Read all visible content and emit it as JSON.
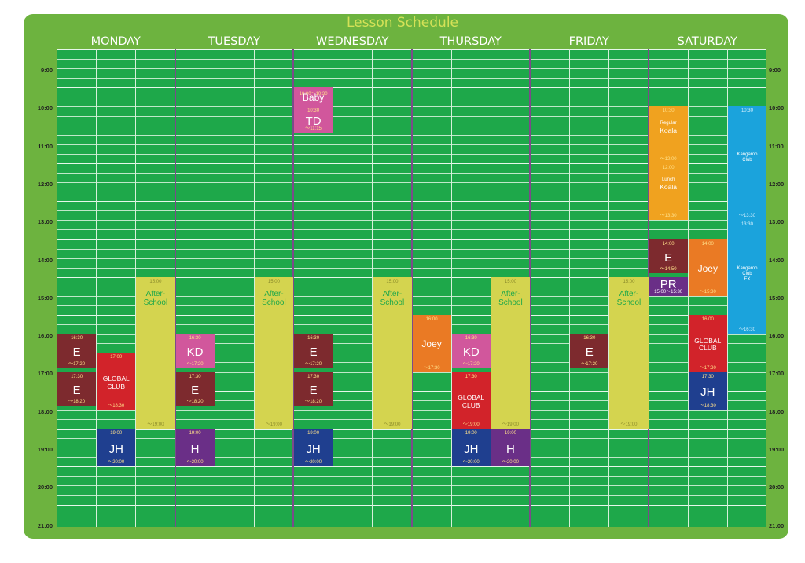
{
  "title": "Lesson Schedule",
  "days": [
    "MONDAY",
    "TUESDAY",
    "WEDNESDAY",
    "THURSDAY",
    "FRIDAY",
    "SATURDAY"
  ],
  "hours": [
    "9:00",
    "10:00",
    "11:00",
    "12:00",
    "13:00",
    "14:00",
    "15:00",
    "16:00",
    "17:00",
    "18:00",
    "19:00",
    "20:00",
    "21:00"
  ],
  "colors": {
    "maroon": "#7d2a2e",
    "red": "#d2232a",
    "pink": "#d1579c",
    "olive": "#d4d44f",
    "navy": "#1f3f8f",
    "purple": "#6a2f87",
    "orange": "#ea7a24",
    "amber": "#f0a21f",
    "sky": "#1ba3dc"
  },
  "events": [
    {
      "col": 0,
      "start": 16.5,
      "end": 17.4,
      "color": "maroon",
      "st": "16:30",
      "name": "E",
      "en": "～17:20"
    },
    {
      "col": 0,
      "start": 17.5,
      "end": 18.4,
      "color": "maroon",
      "st": "17:30",
      "name": "E",
      "en": "～18:20"
    },
    {
      "col": 1,
      "start": 17.0,
      "end": 18.5,
      "color": "red",
      "st": "17:00",
      "name": "GLOBAL\nCLUB",
      "en": "～18:30"
    },
    {
      "col": 1,
      "start": 19.0,
      "end": 20.0,
      "color": "navy",
      "st": "19:00",
      "name": "JH",
      "en": "～20:00"
    },
    {
      "col": 2,
      "start": 15.0,
      "end": 19.0,
      "color": "olive",
      "st": "15:00",
      "name": "After-\nSchool",
      "en": "～19:00"
    },
    {
      "col": 3,
      "start": 16.5,
      "end": 17.4,
      "color": "pink",
      "st": "16:30",
      "name": "KD",
      "en": "～17:20"
    },
    {
      "col": 3,
      "start": 17.5,
      "end": 18.4,
      "color": "maroon",
      "st": "17:30",
      "name": "E",
      "en": "～18:20"
    },
    {
      "col": 3,
      "start": 19.0,
      "end": 20.0,
      "color": "purple",
      "st": "19:00",
      "name": "H",
      "en": "～20:00"
    },
    {
      "col": 5,
      "start": 15.0,
      "end": 19.0,
      "color": "olive",
      "st": "15:00",
      "name": "After-\nSchool",
      "en": "～19:00"
    },
    {
      "col": 6,
      "start": 10.0,
      "end": 10.5,
      "color": "pink",
      "st": "10:00～10:30",
      "name": "Baby",
      "en": ""
    },
    {
      "col": 6,
      "start": 10.5,
      "end": 11.2,
      "color": "pink",
      "st": "10:30",
      "name": "TD",
      "en": "～11:15"
    },
    {
      "col": 6,
      "start": 16.5,
      "end": 17.4,
      "color": "maroon",
      "st": "16:30",
      "name": "E",
      "en": "～17:20"
    },
    {
      "col": 6,
      "start": 17.5,
      "end": 18.4,
      "color": "maroon",
      "st": "17:30",
      "name": "E",
      "en": "～18:20"
    },
    {
      "col": 6,
      "start": 19.0,
      "end": 20.0,
      "color": "navy",
      "st": "19:00",
      "name": "JH",
      "en": "～20:00"
    },
    {
      "col": 8,
      "start": 15.0,
      "end": 19.0,
      "color": "olive",
      "st": "15:00",
      "name": "After-\nSchool",
      "en": "～19:00"
    },
    {
      "col": 9,
      "start": 16.0,
      "end": 17.5,
      "color": "orange",
      "st": "16:00",
      "name": "Joey",
      "en": "～17:30"
    },
    {
      "col": 10,
      "start": 16.5,
      "end": 17.4,
      "color": "pink",
      "st": "16:30",
      "name": "KD",
      "en": "～17:20"
    },
    {
      "col": 10,
      "start": 17.5,
      "end": 19.0,
      "color": "red",
      "st": "17:30",
      "name": "GLOBAL\nCLUB",
      "en": "～19:00"
    },
    {
      "col": 10,
      "start": 19.0,
      "end": 20.0,
      "color": "navy",
      "st": "19:00",
      "name": "JH",
      "en": "～20:00"
    },
    {
      "col": 11,
      "start": 15.0,
      "end": 19.0,
      "color": "olive",
      "st": "15:00",
      "name": "After-\nSchool",
      "en": "～19:00"
    },
    {
      "col": 11,
      "start": 19.0,
      "end": 20.0,
      "color": "purple",
      "st": "19:00",
      "name": "H",
      "en": "～20:00"
    },
    {
      "col": 13,
      "start": 16.5,
      "end": 17.4,
      "color": "maroon",
      "st": "16:30",
      "name": "E",
      "en": "～17:20"
    },
    {
      "col": 14,
      "start": 15.0,
      "end": 19.0,
      "color": "olive",
      "st": "15:00",
      "name": "After-\nSchool",
      "en": "～19:00"
    },
    {
      "col": 15,
      "start": 10.5,
      "end": 12.0,
      "color": "amber",
      "st": "10:30",
      "sub": "Regular",
      "name": "Koala",
      "en": "～12:00"
    },
    {
      "col": 15,
      "start": 12.0,
      "end": 13.5,
      "color": "amber",
      "st": "12:00",
      "sub": "Lunch",
      "name": "Koala",
      "en": "～13:30"
    },
    {
      "col": 15,
      "start": 14.0,
      "end": 14.9,
      "color": "maroon",
      "st": "14:00",
      "name": "E",
      "en": "～14:50"
    },
    {
      "col": 15,
      "start": 15.0,
      "end": 15.5,
      "color": "purple",
      "st": "",
      "name": "PR",
      "en": "15:00～15:30"
    },
    {
      "col": 16,
      "start": 14.0,
      "end": 15.5,
      "color": "orange",
      "st": "14:00",
      "name": "Joey",
      "en": "～15:30"
    },
    {
      "col": 16,
      "start": 16.0,
      "end": 17.5,
      "color": "red",
      "st": "16:00",
      "name": "GLOBAL\nCLUB",
      "en": "～17:30"
    },
    {
      "col": 16,
      "start": 17.5,
      "end": 18.5,
      "color": "navy",
      "st": "17:30",
      "name": "JH",
      "en": "～18:30"
    },
    {
      "col": 17,
      "start": 10.5,
      "end": 13.5,
      "color": "sky",
      "st": "10:30",
      "name": "Kangaroo\nClub",
      "en": "～13:30"
    },
    {
      "col": 17,
      "start": 13.5,
      "end": 16.5,
      "color": "sky",
      "st": "13:30",
      "name": "Kangaroo\nClub\nEX",
      "en": "～16:30"
    }
  ]
}
